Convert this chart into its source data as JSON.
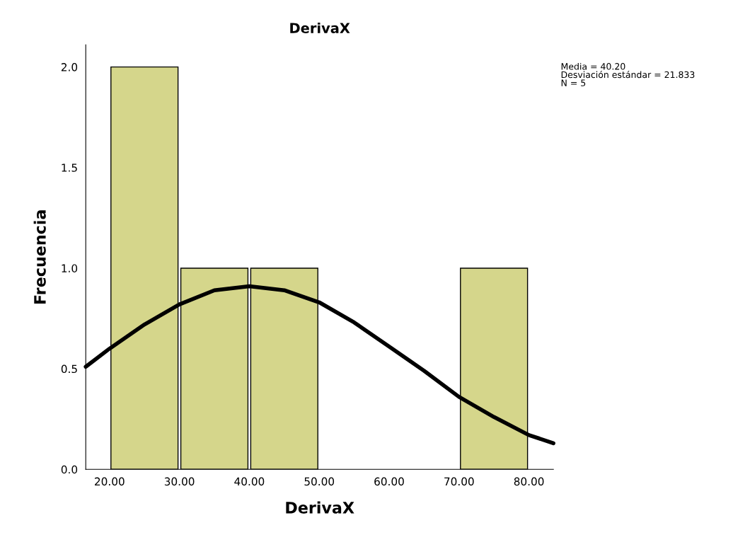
{
  "chart_data": {
    "type": "histogram",
    "title": "DerivaX",
    "xlabel": "DerivaX",
    "ylabel": "Frecuencia",
    "bins": [
      20,
      30,
      40,
      50,
      60,
      70,
      80
    ],
    "values": [
      2,
      1,
      1,
      0,
      0,
      1
    ],
    "color": "#d5d68b",
    "series": [
      {
        "type": "line",
        "color": "#000000",
        "x": [
          16.6,
          20,
          25,
          30,
          35,
          40,
          45,
          50,
          55,
          60,
          65,
          70,
          75,
          80,
          83.5
        ],
        "values": [
          0.51,
          0.6,
          0.72,
          0.82,
          0.89,
          0.91,
          0.89,
          0.83,
          0.73,
          0.61,
          0.49,
          0.36,
          0.26,
          0.17,
          0.13
        ]
      }
    ],
    "xlim": [
      16.6,
      83.5
    ],
    "ylim": [
      0,
      2.11
    ],
    "xticks": [
      {
        "value": 20,
        "label": "20.00"
      },
      {
        "value": 30,
        "label": "30.00"
      },
      {
        "value": 40,
        "label": "40.00"
      },
      {
        "value": 50,
        "label": "50.00"
      },
      {
        "value": 60,
        "label": "60.00"
      },
      {
        "value": 70,
        "label": "70.00"
      },
      {
        "value": 80,
        "label": "80.00"
      }
    ],
    "yticks": [
      {
        "value": 0,
        "label": "0.0"
      },
      {
        "value": 0.5,
        "label": "0.5"
      },
      {
        "value": 1,
        "label": "1.0"
      },
      {
        "value": 1.5,
        "label": "1.5"
      },
      {
        "value": 2,
        "label": "2.0"
      }
    ],
    "annotations": [
      "Media = 40.20",
      "Desviación estándar = 21.833",
      "N = 5"
    ],
    "grid": false,
    "legend": false
  }
}
